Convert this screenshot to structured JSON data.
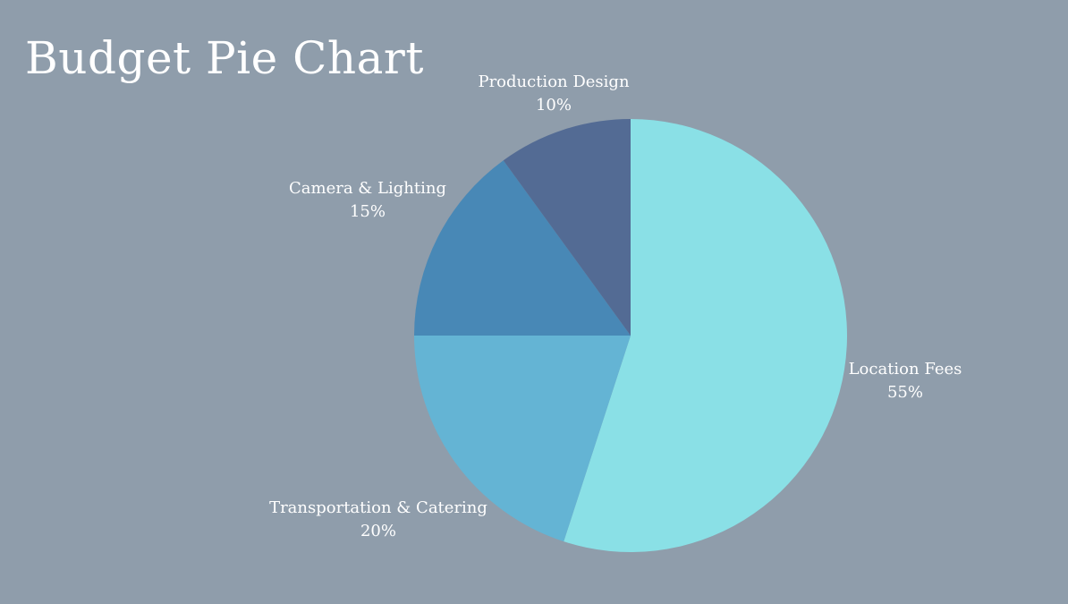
{
  "slide": {
    "title": "Budget Pie Chart",
    "background_color": "#8f9dab"
  },
  "chart_data": {
    "type": "pie",
    "title": "Budget Pie Chart",
    "start_angle_deg": 0,
    "direction": "clockwise",
    "slices": [
      {
        "label": "Location Fees",
        "value": 55,
        "value_label": "55%",
        "color": "#8ae0e6"
      },
      {
        "label": "Transportation & Catering",
        "value": 20,
        "value_label": "20%",
        "color": "#64b4d4"
      },
      {
        "label": "Camera & Lighting",
        "value": 15,
        "value_label": "15%",
        "color": "#4888b6"
      },
      {
        "label": "Production Design",
        "value": 10,
        "value_label": "10%",
        "color": "#536b94"
      }
    ]
  }
}
